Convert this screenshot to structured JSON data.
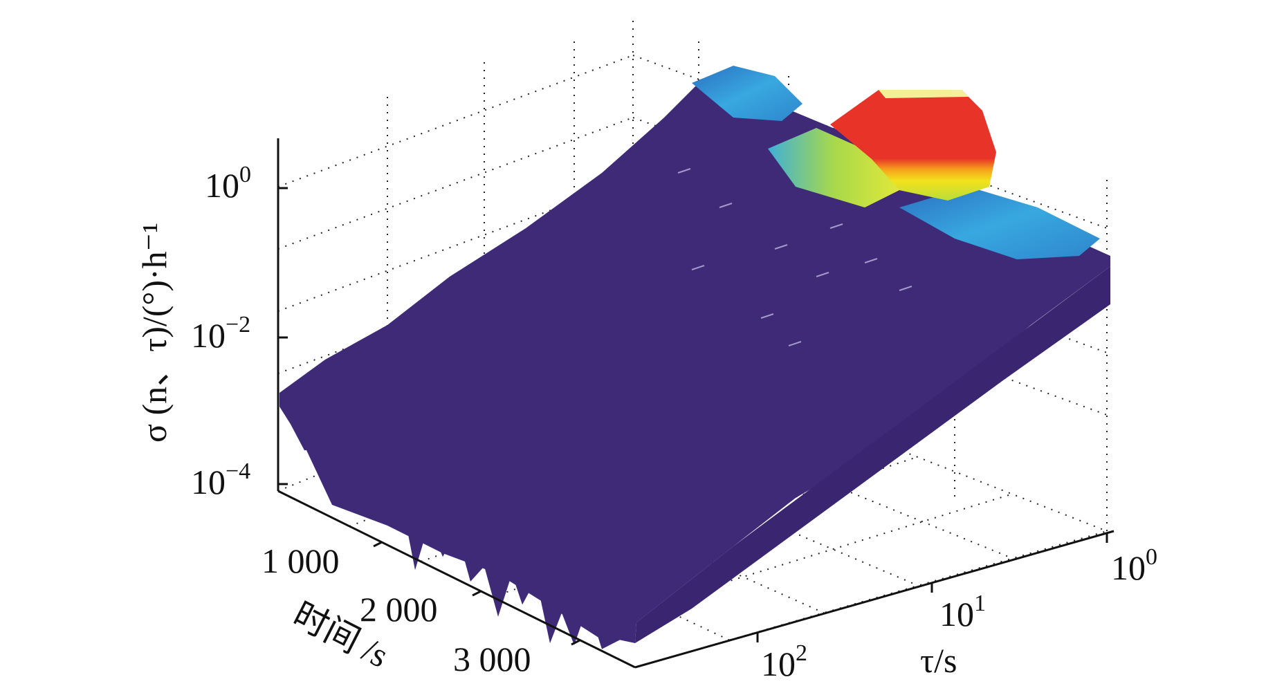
{
  "chart_data": {
    "type": "surface3d",
    "zlabel": "σ (n、τ)/(°)·h⁻¹",
    "xlabel": "时间 /s",
    "ylabel": "τ/s",
    "x_ticks": [
      "1 000",
      "2 000",
      "3 000"
    ],
    "y_ticks": [
      {
        "base": "10",
        "exp": "0"
      },
      {
        "base": "10",
        "exp": "1"
      },
      {
        "base": "10",
        "exp": "2"
      }
    ],
    "z_ticks": [
      {
        "base": "10",
        "exp": "0"
      },
      {
        "base": "10",
        "exp": "−2"
      },
      {
        "base": "10",
        "exp": "−4"
      }
    ],
    "z_scale": "log",
    "y_scale": "log",
    "grid": true,
    "colors": {
      "surface_low": "#3f2a78",
      "surface_mid": "#38a8e0",
      "surface_yellow": "#f2e21c",
      "surface_high": "#e83328",
      "grid": "#222222"
    }
  }
}
